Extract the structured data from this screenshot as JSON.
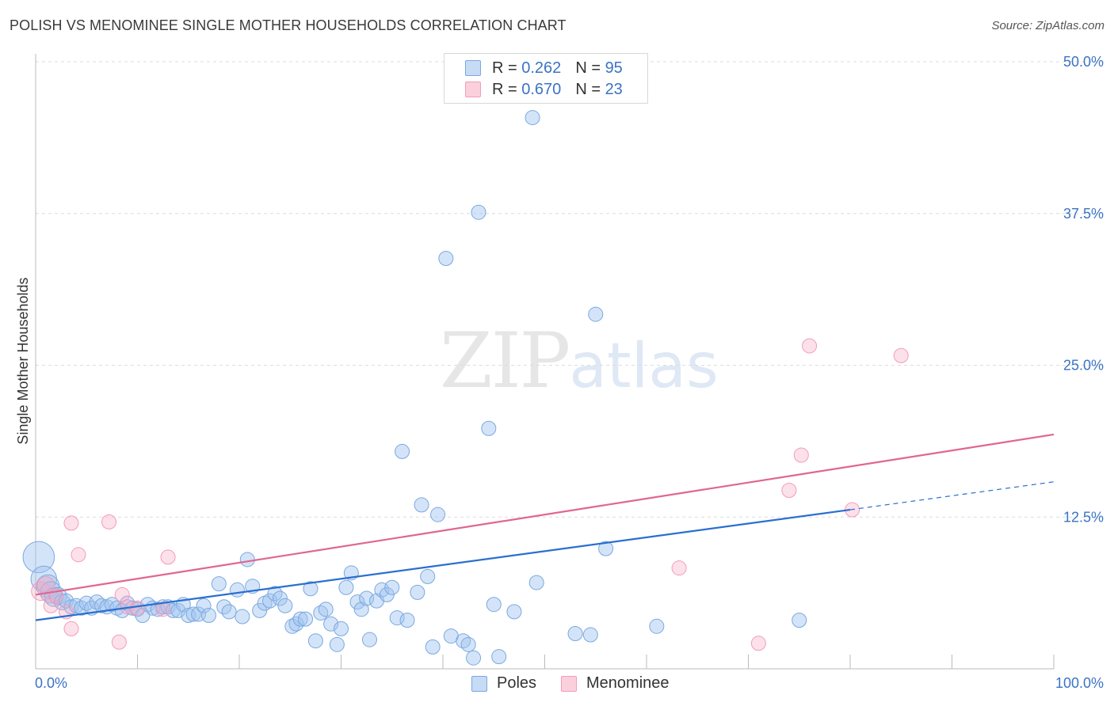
{
  "title": "POLISH VS MENOMINEE SINGLE MOTHER HOUSEHOLDS CORRELATION CHART",
  "source": "Source: ZipAtlas.com",
  "watermark": {
    "zip": "ZIP",
    "atlas": "atlas"
  },
  "legend": {
    "rows": [
      {
        "r_label": "R =",
        "r_value": "0.262",
        "n_label": "N =",
        "n_value": "95",
        "color": "#a9c8f0"
      },
      {
        "r_label": "R =",
        "r_value": "0.670",
        "n_label": "N =",
        "n_value": "23",
        "color": "#f6b8cb"
      }
    ]
  },
  "bottom_legend": [
    {
      "label": "Poles",
      "color": "#a9c8f0"
    },
    {
      "label": "Menominee",
      "color": "#f6b8cb"
    }
  ],
  "chart_data": {
    "type": "scatter",
    "title": "POLISH VS MENOMINEE SINGLE MOTHER HOUSEHOLDS CORRELATION CHART",
    "ylabel": "Single Mother Households",
    "xlim": [
      0,
      100
    ],
    "ylim": [
      0,
      50
    ],
    "x_tick_labels": [
      "0.0%",
      "100.0%"
    ],
    "y_ticks": [
      12.5,
      25.0,
      37.5,
      50.0
    ],
    "y_tick_labels": [
      "12.5%",
      "25.0%",
      "37.5%",
      "50.0%"
    ],
    "grid": true,
    "series": [
      {
        "name": "Poles",
        "color": "#7aa8e0",
        "line_color": "#2a6fd0",
        "trend": {
          "x0": 0,
          "y0": 4.0,
          "x1": 80,
          "y1": 13.1,
          "dash_to_x": 100,
          "dash_to_y": 15.4
        },
        "points": [
          [
            0.3,
            9.2,
            2.2
          ],
          [
            0.8,
            7.4,
            1.8
          ],
          [
            1.2,
            6.8,
            1.6
          ],
          [
            1.5,
            6.3,
            1.5
          ],
          [
            1.8,
            5.9,
            1.3
          ],
          [
            2.2,
            6.0,
            1.2
          ],
          [
            2.6,
            5.5,
            1.1
          ],
          [
            3.0,
            5.6,
            1
          ],
          [
            3.5,
            5.1,
            1
          ],
          [
            4.0,
            5.2,
            1
          ],
          [
            4.5,
            5.0,
            1
          ],
          [
            5.0,
            5.4,
            1
          ],
          [
            5.5,
            5.0,
            1
          ],
          [
            6.0,
            5.5,
            1
          ],
          [
            6.5,
            5.2,
            1
          ],
          [
            7.0,
            5.1,
            1
          ],
          [
            7.5,
            5.3,
            1
          ],
          [
            8.0,
            5.0,
            1
          ],
          [
            8.5,
            4.8,
            1
          ],
          [
            9.0,
            5.4,
            1
          ],
          [
            9.5,
            5.0,
            1
          ],
          [
            10.0,
            4.9,
            1
          ],
          [
            10.5,
            4.4,
            1
          ],
          [
            11.0,
            5.3,
            1
          ],
          [
            11.5,
            5.0,
            1
          ],
          [
            12.0,
            4.9,
            1
          ],
          [
            12.5,
            5.1,
            1
          ],
          [
            13.0,
            5.1,
            1
          ],
          [
            13.5,
            4.8,
            1
          ],
          [
            14.0,
            4.8,
            1
          ],
          [
            14.5,
            5.3,
            1
          ],
          [
            15.0,
            4.4,
            1
          ],
          [
            15.5,
            4.5,
            1
          ],
          [
            16.0,
            4.5,
            1
          ],
          [
            16.5,
            5.2,
            1
          ],
          [
            17.0,
            4.4,
            1
          ],
          [
            18.0,
            7.0,
            1
          ],
          [
            18.5,
            5.1,
            1
          ],
          [
            19.0,
            4.7,
            1
          ],
          [
            19.8,
            6.5,
            1
          ],
          [
            20.3,
            4.3,
            1
          ],
          [
            20.8,
            9.0,
            1
          ],
          [
            21.3,
            6.8,
            1
          ],
          [
            22.0,
            4.8,
            1
          ],
          [
            22.5,
            5.4,
            1
          ],
          [
            23.0,
            5.6,
            1
          ],
          [
            23.5,
            6.2,
            1
          ],
          [
            24.0,
            5.8,
            1
          ],
          [
            24.5,
            5.2,
            1
          ],
          [
            25.2,
            3.5,
            1
          ],
          [
            25.6,
            3.7,
            1
          ],
          [
            26.0,
            4.1,
            1
          ],
          [
            26.5,
            4.1,
            1
          ],
          [
            27.0,
            6.6,
            1
          ],
          [
            27.5,
            2.3,
            1
          ],
          [
            28.0,
            4.6,
            1
          ],
          [
            28.5,
            4.9,
            1
          ],
          [
            29.0,
            3.7,
            1
          ],
          [
            29.6,
            2.0,
            1
          ],
          [
            30.0,
            3.3,
            1
          ],
          [
            30.5,
            6.7,
            1
          ],
          [
            31.0,
            7.9,
            1
          ],
          [
            31.6,
            5.5,
            1
          ],
          [
            32.0,
            4.9,
            1
          ],
          [
            32.5,
            5.8,
            1
          ],
          [
            32.8,
            2.4,
            1
          ],
          [
            33.5,
            5.6,
            1
          ],
          [
            34.0,
            6.5,
            1
          ],
          [
            34.5,
            6.1,
            1
          ],
          [
            35.0,
            6.7,
            1
          ],
          [
            35.5,
            4.2,
            1
          ],
          [
            36.0,
            17.9,
            1
          ],
          [
            36.5,
            4.0,
            1
          ],
          [
            37.5,
            6.3,
            1
          ],
          [
            37.9,
            13.5,
            1
          ],
          [
            38.5,
            7.6,
            1
          ],
          [
            39.0,
            1.8,
            1
          ],
          [
            39.5,
            12.7,
            1
          ],
          [
            40.3,
            33.8,
            1
          ],
          [
            40.8,
            2.7,
            1
          ],
          [
            42.0,
            2.3,
            1
          ],
          [
            42.5,
            2.0,
            1
          ],
          [
            43.0,
            0.9,
            1
          ],
          [
            43.5,
            37.6,
            1
          ],
          [
            44.5,
            19.8,
            1
          ],
          [
            45.0,
            5.3,
            1
          ],
          [
            45.5,
            1.0,
            1
          ],
          [
            47.0,
            4.7,
            1
          ],
          [
            48.8,
            45.4,
            1
          ],
          [
            49.2,
            7.1,
            1
          ],
          [
            53.0,
            2.9,
            1
          ],
          [
            54.5,
            2.8,
            1
          ],
          [
            55.0,
            29.2,
            1
          ],
          [
            56.0,
            9.9,
            1
          ],
          [
            61.0,
            3.5,
            1
          ],
          [
            75.0,
            4.0,
            1
          ]
        ]
      },
      {
        "name": "Menominee",
        "color": "#f49bb8",
        "line_color": "#e06690",
        "trend": {
          "x0": 0,
          "y0": 6.1,
          "x1": 100,
          "y1": 19.3
        },
        "points": [
          [
            0.5,
            6.4,
            1.3
          ],
          [
            1.0,
            6.9,
            1.2
          ],
          [
            1.5,
            5.2,
            1
          ],
          [
            2.0,
            6.0,
            1
          ],
          [
            3.0,
            4.7,
            1
          ],
          [
            3.5,
            3.3,
            1
          ],
          [
            3.5,
            12.0,
            1
          ],
          [
            4.2,
            9.4,
            1
          ],
          [
            7.2,
            12.1,
            1
          ],
          [
            8.2,
            2.2,
            1
          ],
          [
            8.5,
            6.1,
            1
          ],
          [
            9.0,
            5.1,
            1
          ],
          [
            10.0,
            5.0,
            1
          ],
          [
            12.5,
            4.9,
            1
          ],
          [
            13.0,
            9.2,
            1
          ],
          [
            63.2,
            8.3,
            1
          ],
          [
            71.0,
            2.1,
            1
          ],
          [
            74.0,
            14.7,
            1
          ],
          [
            75.2,
            17.6,
            1
          ],
          [
            76.0,
            26.6,
            1
          ],
          [
            80.2,
            13.1,
            1
          ],
          [
            85.0,
            25.8,
            1
          ]
        ]
      }
    ]
  }
}
